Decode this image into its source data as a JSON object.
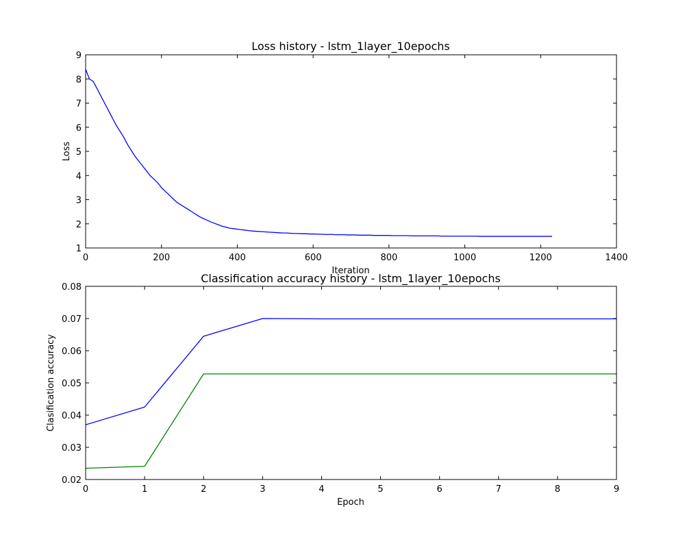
{
  "chart_data": [
    {
      "type": "line",
      "title": "Loss history - lstm_1layer_10epochs",
      "xlabel": "Iteration",
      "ylabel": "Loss",
      "xlim": [
        0,
        1400
      ],
      "ylim": [
        1,
        9
      ],
      "xticks": [
        "0",
        "200",
        "400",
        "600",
        "800",
        "1000",
        "1200",
        "1400"
      ],
      "yticks": [
        "1",
        "2",
        "3",
        "4",
        "5",
        "6",
        "7",
        "8",
        "9"
      ],
      "grid": false,
      "legend": "none",
      "series": [
        {
          "color": "#0000ff",
          "x": [
            0,
            10,
            20,
            30,
            40,
            50,
            60,
            70,
            80,
            90,
            100,
            110,
            120,
            130,
            140,
            150,
            160,
            170,
            180,
            190,
            200,
            210,
            220,
            230,
            240,
            250,
            260,
            270,
            280,
            290,
            300,
            310,
            320,
            330,
            340,
            350,
            360,
            370,
            380,
            390,
            400,
            410,
            420,
            430,
            440,
            450,
            460,
            470,
            480,
            490,
            500,
            510,
            520,
            530,
            540,
            550,
            560,
            570,
            580,
            590,
            600,
            610,
            620,
            630,
            640,
            650,
            660,
            670,
            680,
            690,
            700,
            710,
            720,
            730,
            740,
            750,
            760,
            770,
            780,
            790,
            800,
            810,
            820,
            830,
            840,
            850,
            860,
            870,
            880,
            890,
            900,
            910,
            920,
            930,
            940,
            950,
            960,
            970,
            980,
            990,
            1000,
            1010,
            1020,
            1030,
            1040,
            1050,
            1060,
            1070,
            1080,
            1090,
            1100,
            1110,
            1120,
            1130,
            1140,
            1150,
            1160,
            1170,
            1180,
            1190,
            1200,
            1210,
            1220,
            1230
          ],
          "y": [
            8.4,
            8.0,
            7.9,
            7.6,
            7.3,
            7.0,
            6.7,
            6.4,
            6.1,
            5.85,
            5.6,
            5.3,
            5.05,
            4.8,
            4.6,
            4.4,
            4.2,
            4.0,
            3.85,
            3.7,
            3.5,
            3.35,
            3.2,
            3.05,
            2.9,
            2.8,
            2.7,
            2.6,
            2.5,
            2.4,
            2.3,
            2.22,
            2.15,
            2.08,
            2.02,
            1.96,
            1.9,
            1.86,
            1.82,
            1.8,
            1.78,
            1.76,
            1.74,
            1.72,
            1.7,
            1.69,
            1.68,
            1.67,
            1.66,
            1.65,
            1.64,
            1.63,
            1.62,
            1.62,
            1.61,
            1.6,
            1.6,
            1.59,
            1.59,
            1.58,
            1.58,
            1.57,
            1.57,
            1.56,
            1.56,
            1.56,
            1.55,
            1.55,
            1.55,
            1.54,
            1.54,
            1.54,
            1.53,
            1.53,
            1.53,
            1.53,
            1.52,
            1.52,
            1.52,
            1.52,
            1.52,
            1.51,
            1.51,
            1.51,
            1.51,
            1.51,
            1.5,
            1.5,
            1.5,
            1.5,
            1.5,
            1.5,
            1.5,
            1.5,
            1.49,
            1.49,
            1.49,
            1.49,
            1.49,
            1.49,
            1.49,
            1.49,
            1.49,
            1.49,
            1.48,
            1.48,
            1.48,
            1.48,
            1.48,
            1.48,
            1.48,
            1.48,
            1.48,
            1.48,
            1.48,
            1.48,
            1.48,
            1.48,
            1.48,
            1.48,
            1.48,
            1.48,
            1.48,
            1.48
          ]
        }
      ]
    },
    {
      "type": "line",
      "title": "Classification accuracy history - lstm_1layer_10epochs",
      "xlabel": "Epoch",
      "ylabel": "Clasification accuracy",
      "xlim": [
        0,
        9
      ],
      "ylim": [
        0.02,
        0.08
      ],
      "xticks": [
        "0",
        "1",
        "2",
        "3",
        "4",
        "5",
        "6",
        "7",
        "8",
        "9"
      ],
      "yticks": [
        "0.02",
        "0.03",
        "0.04",
        "0.05",
        "0.06",
        "0.07",
        "0.08"
      ],
      "grid": false,
      "legend": "none",
      "categories": [
        0,
        1,
        2,
        3,
        4,
        5,
        6,
        7,
        8,
        9
      ],
      "series": [
        {
          "color": "#0000ff",
          "values": [
            0.037,
            0.0425,
            0.0645,
            0.07,
            0.0699,
            0.0699,
            0.0699,
            0.0699,
            0.0699,
            0.0699
          ]
        },
        {
          "color": "#008000",
          "values": [
            0.0235,
            0.0241,
            0.0528,
            0.0528,
            0.0528,
            0.0528,
            0.0528,
            0.0528,
            0.0528,
            0.0528
          ]
        }
      ]
    }
  ]
}
